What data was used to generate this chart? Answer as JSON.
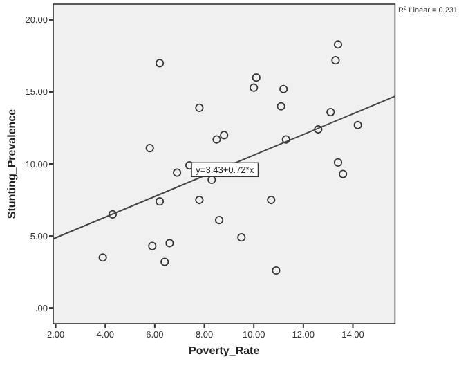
{
  "chart_data": {
    "type": "scatter",
    "xlabel": "Poverty_Rate",
    "ylabel": "Stunting_Prevalence",
    "xlim": [
      1.9,
      15.7
    ],
    "ylim": [
      -1.1,
      21.1
    ],
    "xticks": [
      {
        "value": 2,
        "label": "2.00"
      },
      {
        "value": 4,
        "label": "4.00"
      },
      {
        "value": 6,
        "label": "6.00"
      },
      {
        "value": 8,
        "label": "8.00"
      },
      {
        "value": 10,
        "label": "10.00"
      },
      {
        "value": 12,
        "label": "12.00"
      },
      {
        "value": 14,
        "label": "14.00"
      }
    ],
    "yticks": [
      {
        "value": 0,
        "label": ".00"
      },
      {
        "value": 5,
        "label": "5.00"
      },
      {
        "value": 10,
        "label": "10.00"
      },
      {
        "value": 15,
        "label": "15.00"
      },
      {
        "value": 20,
        "label": "20.00"
      }
    ],
    "grid": false,
    "series": [
      {
        "color": "#333333",
        "marker": "circle",
        "x": [
          6.2,
          5.8,
          6.9,
          7.4,
          7.8,
          8.3,
          8.5,
          8.8,
          10.0,
          10.1,
          11.1,
          11.2,
          11.3,
          12.6,
          13.1,
          13.3,
          13.4,
          13.4,
          13.6,
          14.2,
          4.3,
          6.2,
          7.8,
          10.7,
          8.6,
          9.5,
          3.9,
          5.9,
          6.6,
          6.4,
          10.9
        ],
        "values": [
          17.0,
          11.1,
          9.4,
          9.9,
          13.9,
          8.9,
          11.7,
          12.0,
          15.3,
          16.0,
          14.0,
          15.2,
          11.7,
          12.4,
          13.6,
          17.2,
          18.3,
          10.1,
          9.3,
          12.7,
          6.5,
          7.4,
          7.5,
          7.5,
          6.1,
          4.9,
          3.5,
          4.3,
          4.5,
          3.2,
          2.6
        ]
      },
      {
        "type": "line",
        "marker": "none",
        "color": "#444444",
        "x": [
          1.9,
          15.7
        ],
        "values": [
          4.8,
          14.7
        ]
      }
    ],
    "annotations": [
      {
        "text": "y=3.43+0.72*x",
        "x": 8.83,
        "y": 9.6
      },
      "R$^{2}$ Linear = 0.231"
    ]
  }
}
